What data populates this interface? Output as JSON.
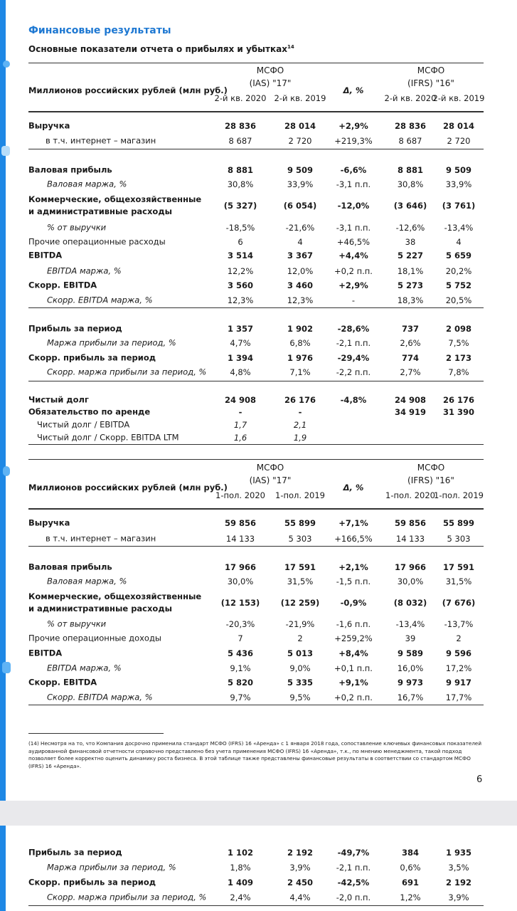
{
  "header": {
    "title": "Финансовые результаты",
    "subtitle": "Основные показатели отчета о прибылях и убытках",
    "subtitle_note": "14"
  },
  "tables": [
    {
      "header": {
        "label": "Миллионов российских рублей (млн руб.)",
        "ias": [
          "МСФО",
          "(IAS) \"17\""
        ],
        "ifrs": [
          "МСФО",
          "(IFRS) \"16\""
        ],
        "columns": [
          "2-й кв. 2020",
          "2-й кв. 2019",
          "Δ, %",
          "2-й кв. 2020",
          "2-й кв. 2019"
        ]
      },
      "groups": [
        [
          {
            "label": "Выручка",
            "kind": "bold",
            "values": [
              "28 836",
              "28 014",
              "+2,9%",
              "28 836",
              "28 014"
            ]
          },
          {
            "label": "в т.ч. интернет – магазин",
            "kind": "sub",
            "values": [
              "8 687",
              "2 720",
              "+219,3%",
              "8 687",
              "2 720"
            ]
          }
        ],
        [
          {
            "label": "Валовая прибыль",
            "kind": "bold",
            "values": [
              "8 881",
              "9 509",
              "-6,6%",
              "8 881",
              "9 509"
            ]
          },
          {
            "label": "Валовая маржа, %",
            "kind": "italic",
            "values": [
              "30,8%",
              "33,9%",
              "-3,1 п.п.",
              "30,8%",
              "33,9%"
            ]
          },
          {
            "label": "Коммерческие, общехозяйственные и административные расходы",
            "kind": "bold",
            "values": [
              "(5 327)",
              "(6 054)",
              "-12,0%",
              "(3 646)",
              "(3 761)"
            ]
          },
          {
            "label": "% от выручки",
            "kind": "italic",
            "values": [
              "-18,5%",
              "-21,6%",
              "-3,1 п.п.",
              "-12,6%",
              "-13,4%"
            ]
          },
          {
            "label": "Прочие операционные расходы",
            "kind": "plain",
            "values": [
              "6",
              "4",
              "+46,5%",
              "38",
              "4"
            ]
          },
          {
            "label": "EBITDA",
            "kind": "bold",
            "values": [
              "3 514",
              "3 367",
              "+4,4%",
              "5 227",
              "5 659"
            ]
          },
          {
            "label": "EBITDA маржа, %",
            "kind": "italic",
            "values": [
              "12,2%",
              "12,0%",
              "+0,2 п.п.",
              "18,1%",
              "20,2%"
            ]
          },
          {
            "label": "Скорр. EBITDA",
            "kind": "bold",
            "values": [
              "3 560",
              "3 460",
              "+2,9%",
              "5 273",
              "5 752"
            ]
          },
          {
            "label": "Скорр. EBITDA маржа, %",
            "kind": "italic",
            "values": [
              "12,3%",
              "12,3%",
              "-",
              "18,3%",
              "20,5%"
            ]
          }
        ],
        [
          {
            "label": "Прибыль за период",
            "kind": "bold",
            "values": [
              "1 357",
              "1 902",
              "-28,6%",
              "737",
              "2 098"
            ]
          },
          {
            "label": "Маржа прибыли за период, %",
            "kind": "italic",
            "values": [
              "4,7%",
              "6,8%",
              "-2,1 п.п.",
              "2,6%",
              "7,5%"
            ]
          },
          {
            "label": "Скорр. прибыль за период",
            "kind": "bold",
            "values": [
              "1 394",
              "1 976",
              "-29,4%",
              "774",
              "2 173"
            ]
          },
          {
            "label": "Скорр. маржа прибыли за период, %",
            "kind": "italic",
            "values": [
              "4,8%",
              "7,1%",
              "-2,2 п.п.",
              "2,7%",
              "7,8%"
            ]
          }
        ],
        [
          {
            "label": "Чистый долг",
            "kind": "bold",
            "values": [
              "24 908",
              "26 176",
              "-4,8%",
              "24 908",
              "26 176"
            ]
          },
          {
            "label": "Обязательство по аренде",
            "kind": "bold",
            "values": [
              "-",
              "-",
              null,
              "34 919",
              "31 390"
            ]
          },
          {
            "label": "Чистый долг / EBITDA",
            "kind": "ratio",
            "values": [
              "1,7",
              "2,1",
              null,
              null,
              null
            ]
          },
          {
            "label": "Чистый долг / Скорр. EBITDA LTM",
            "kind": "ratio",
            "values": [
              "1,6",
              "1,9",
              null,
              null,
              null
            ]
          }
        ]
      ]
    },
    {
      "header": {
        "label": "Миллионов российских рублей (млн руб.)",
        "ias": [
          "МСФО",
          "(IAS) \"17\""
        ],
        "ifrs": [
          "МСФО",
          "(IFRS) \"16\""
        ],
        "columns": [
          "1-пол. 2020",
          "1-пол. 2019",
          "Δ, %",
          "1-пол. 2020",
          "1-пол. 2019"
        ]
      },
      "groups": [
        [
          {
            "label": "Выручка",
            "kind": "bold",
            "values": [
              "59 856",
              "55 899",
              "+7,1%",
              "59 856",
              "55 899"
            ]
          },
          {
            "label": "в т.ч. интернет – магазин",
            "kind": "sub",
            "values": [
              "14 133",
              "5 303",
              "+166,5%",
              "14 133",
              "5 303"
            ]
          }
        ],
        [
          {
            "label": "Валовая прибыль",
            "kind": "bold",
            "values": [
              "17 966",
              "17 591",
              "+2,1%",
              "17 966",
              "17 591"
            ]
          },
          {
            "label": "Валовая маржа, %",
            "kind": "italic",
            "values": [
              "30,0%",
              "31,5%",
              "-1,5 п.п.",
              "30,0%",
              "31,5%"
            ]
          },
          {
            "label": "Коммерческие, общехозяйственные и административные расходы",
            "kind": "bold",
            "values": [
              "(12 153)",
              "(12 259)",
              "-0,9%",
              "(8 032)",
              "(7 676)"
            ]
          },
          {
            "label": "% от выручки",
            "kind": "italic",
            "values": [
              "-20,3%",
              "-21,9%",
              "-1,6 п.п.",
              "-13,4%",
              "-13,7%"
            ]
          },
          {
            "label": "Прочие операционные доходы",
            "kind": "plain",
            "values": [
              "7",
              "2",
              "+259,2%",
              "39",
              "2"
            ]
          },
          {
            "label": "EBITDA",
            "kind": "bold",
            "values": [
              "5 436",
              "5 013",
              "+8,4%",
              "9 589",
              "9 596"
            ]
          },
          {
            "label": "EBITDA маржа, %",
            "kind": "italic",
            "values": [
              "9,1%",
              "9,0%",
              "+0,1 п.п.",
              "16,0%",
              "17,2%"
            ]
          },
          {
            "label": "Скорр. EBITDA",
            "kind": "bold",
            "values": [
              "5 820",
              "5 335",
              "+9,1%",
              "9 973",
              "9 917"
            ]
          },
          {
            "label": "Скорр. EBITDA маржа, %",
            "kind": "italic",
            "values": [
              "9,7%",
              "9,5%",
              "+0,2 п.п.",
              "16,7%",
              "17,7%"
            ]
          }
        ]
      ]
    },
    {
      "groups": [
        [
          {
            "label": "Прибыль за период",
            "kind": "bold",
            "values": [
              "1 102",
              "2 192",
              "-49,7%",
              "384",
              "1 935"
            ]
          },
          {
            "label": "Маржа прибыли за период, %",
            "kind": "italic",
            "values": [
              "1,8%",
              "3,9%",
              "-2,1 п.п.",
              "0,6%",
              "3,5%"
            ]
          },
          {
            "label": "Скорр. прибыль за период",
            "kind": "bold",
            "values": [
              "1 409",
              "2 450",
              "-42,5%",
              "691",
              "2 192"
            ]
          },
          {
            "label": "Скорр. маржа прибыли за период, %",
            "kind": "italic",
            "values": [
              "2,4%",
              "4,4%",
              "-2,0 п.п.",
              "1,2%",
              "3,9%"
            ]
          }
        ]
      ]
    }
  ],
  "footnote": "(14) Несмотря на то, что Компания досрочно применила стандарт МСФО (IFRS) 16 «Аренда» с 1 января 2018 года, сопоставление ключевых финансовых показателей аудированной финансовой отчетности справочно представлено без учета применения МСФО (IFRS) 16 «Аренда», т.к., по мнению менеджмента, такой подход позволяет более корректно оценить динамику роста бизнеса. В этой таблице также представлены финансовые результаты в соответствии со стандартом МСФО (IFRS) 16 «Аренда».",
  "page_number": "6"
}
